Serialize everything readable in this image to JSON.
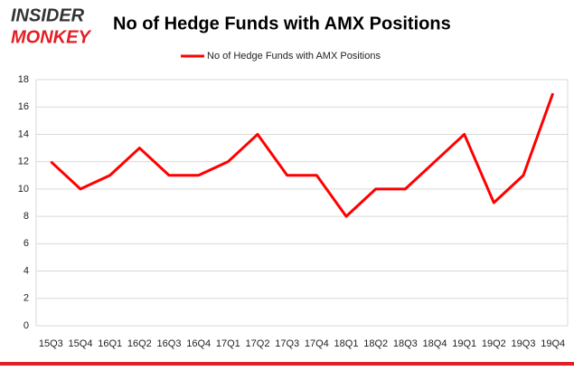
{
  "logo": [
    "INSIDER",
    "MONKEY"
  ],
  "chart_data": {
    "type": "line",
    "title": "No of Hedge Funds with AMX Positions",
    "categories": [
      "15Q3",
      "15Q4",
      "16Q1",
      "16Q2",
      "16Q3",
      "16Q4",
      "17Q1",
      "17Q2",
      "17Q3",
      "17Q4",
      "18Q1",
      "18Q2",
      "18Q3",
      "18Q4",
      "19Q1",
      "19Q2",
      "19Q3",
      "19Q4"
    ],
    "series": [
      {
        "name": "No of Hedge Funds with AMX Positions",
        "color": "#ff0000",
        "values": [
          12,
          10,
          11,
          13,
          11,
          11,
          12,
          14,
          11,
          11,
          8,
          10,
          10,
          12,
          14,
          9,
          11,
          17
        ]
      }
    ],
    "ylim": [
      0,
      18
    ],
    "yticks": [
      0,
      2,
      4,
      6,
      8,
      10,
      12,
      14,
      16,
      18
    ],
    "grid": true,
    "legend": "top"
  }
}
